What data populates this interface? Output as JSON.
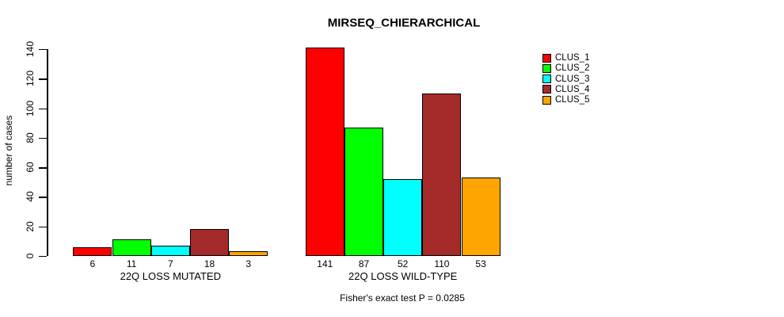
{
  "title": "MIRSEQ_CHIERARCHICAL",
  "chart_data": {
    "type": "bar",
    "title": "MIRSEQ_CHIERARCHICAL",
    "ylabel": "number of cases",
    "xlabel": "",
    "ylim": [
      0,
      140
    ],
    "yticks": [
      0,
      20,
      40,
      60,
      80,
      100,
      120,
      140
    ],
    "grid": false,
    "legend_position": "right",
    "bar_value_labels": true,
    "categories": [
      "22Q LOSS MUTATED",
      "22Q LOSS WILD-TYPE"
    ],
    "series": [
      {
        "name": "CLUS_1",
        "color": "#FF0000",
        "values": [
          6,
          141
        ]
      },
      {
        "name": "CLUS_2",
        "color": "#00FF00",
        "values": [
          11,
          87
        ]
      },
      {
        "name": "CLUS_3",
        "color": "#00FFFF",
        "values": [
          7,
          52
        ]
      },
      {
        "name": "CLUS_4",
        "color": "#A52A2A",
        "values": [
          18,
          110
        ]
      },
      {
        "name": "CLUS_5",
        "color": "#FFA500",
        "values": [
          3,
          53
        ]
      }
    ],
    "annotation": "Fisher's exact test P = 0.0285"
  },
  "colors": {
    "background": "#FFFFFF",
    "axis": "#000000",
    "text": "#000000"
  }
}
